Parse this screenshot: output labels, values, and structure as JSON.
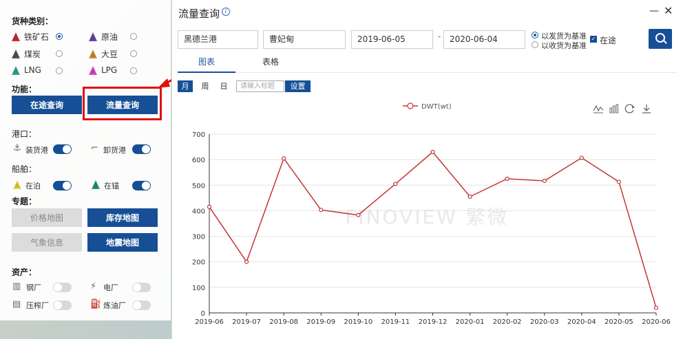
{
  "left_panel": {
    "cargo_section": "货种类别：",
    "cargo": [
      {
        "label": "铁矿石",
        "color": "#c8323a",
        "selected": true
      },
      {
        "label": "原油",
        "color": "#6b4aa8",
        "selected": false
      },
      {
        "label": "煤炭",
        "color": "#555555",
        "selected": false
      },
      {
        "label": "大豆",
        "color": "#d88c3a",
        "selected": false
      },
      {
        "label": "LNG",
        "color": "#3aa59a",
        "selected": false
      },
      {
        "label": "LPG",
        "color": "#d84cc2",
        "selected": false
      }
    ],
    "function_section": "功能：",
    "transit_query": "在途查询",
    "flow_query": "流量查询",
    "port_section": "港口：",
    "load_port": "装货港",
    "unload_port": "卸货港",
    "ship_section": "船舶：",
    "berthed": "在泊",
    "anchored": "在锚",
    "berthed_color": "#e8d84a",
    "anchored_color": "#2a9a6a",
    "topic_section": "专题：",
    "price_map": "价格地图",
    "inventory_map": "库存地图",
    "weather_info": "气象信息",
    "earthquake_map": "地震地图",
    "asset_section": "资产：",
    "steel_mill": "钢厂",
    "power_plant": "电厂",
    "crushing_plant": "压榨厂",
    "refinery": "炼油厂"
  },
  "dialog": {
    "title": "流量查询",
    "from_port": "黑德兰港",
    "to_port": "曹妃甸",
    "start_date": "2019-06-05",
    "date_sep": "-",
    "end_date": "2020-06-04",
    "basis_departure": "以发货为基准",
    "basis_arrival": "以收货为基准",
    "in_transit": "在途",
    "tab_chart": "图表",
    "tab_table": "表格",
    "period_month": "月",
    "period_week": "周",
    "period_day": "日",
    "title_placeholder": "请输入标题",
    "setting": "设置",
    "watermark": "FINOVIEW 繁微"
  },
  "chart_data": {
    "type": "line",
    "legend": "DWT(wt)",
    "series": [
      {
        "name": "DWT(wt)",
        "color": "#c23531",
        "values": [
          415,
          200,
          605,
          403,
          383,
          505,
          630,
          455,
          525,
          517,
          607,
          513,
          20
        ]
      }
    ],
    "categories": [
      "2019-06",
      "2019-07",
      "2019-08",
      "2019-09",
      "2019-10",
      "2019-11",
      "2019-12",
      "2020-01",
      "2020-02",
      "2020-03",
      "2020-04",
      "2020-05",
      "2020-06"
    ],
    "ylim": [
      0,
      700
    ],
    "yticks": [
      0,
      100,
      200,
      300,
      400,
      500,
      600,
      700
    ],
    "grid": true
  }
}
